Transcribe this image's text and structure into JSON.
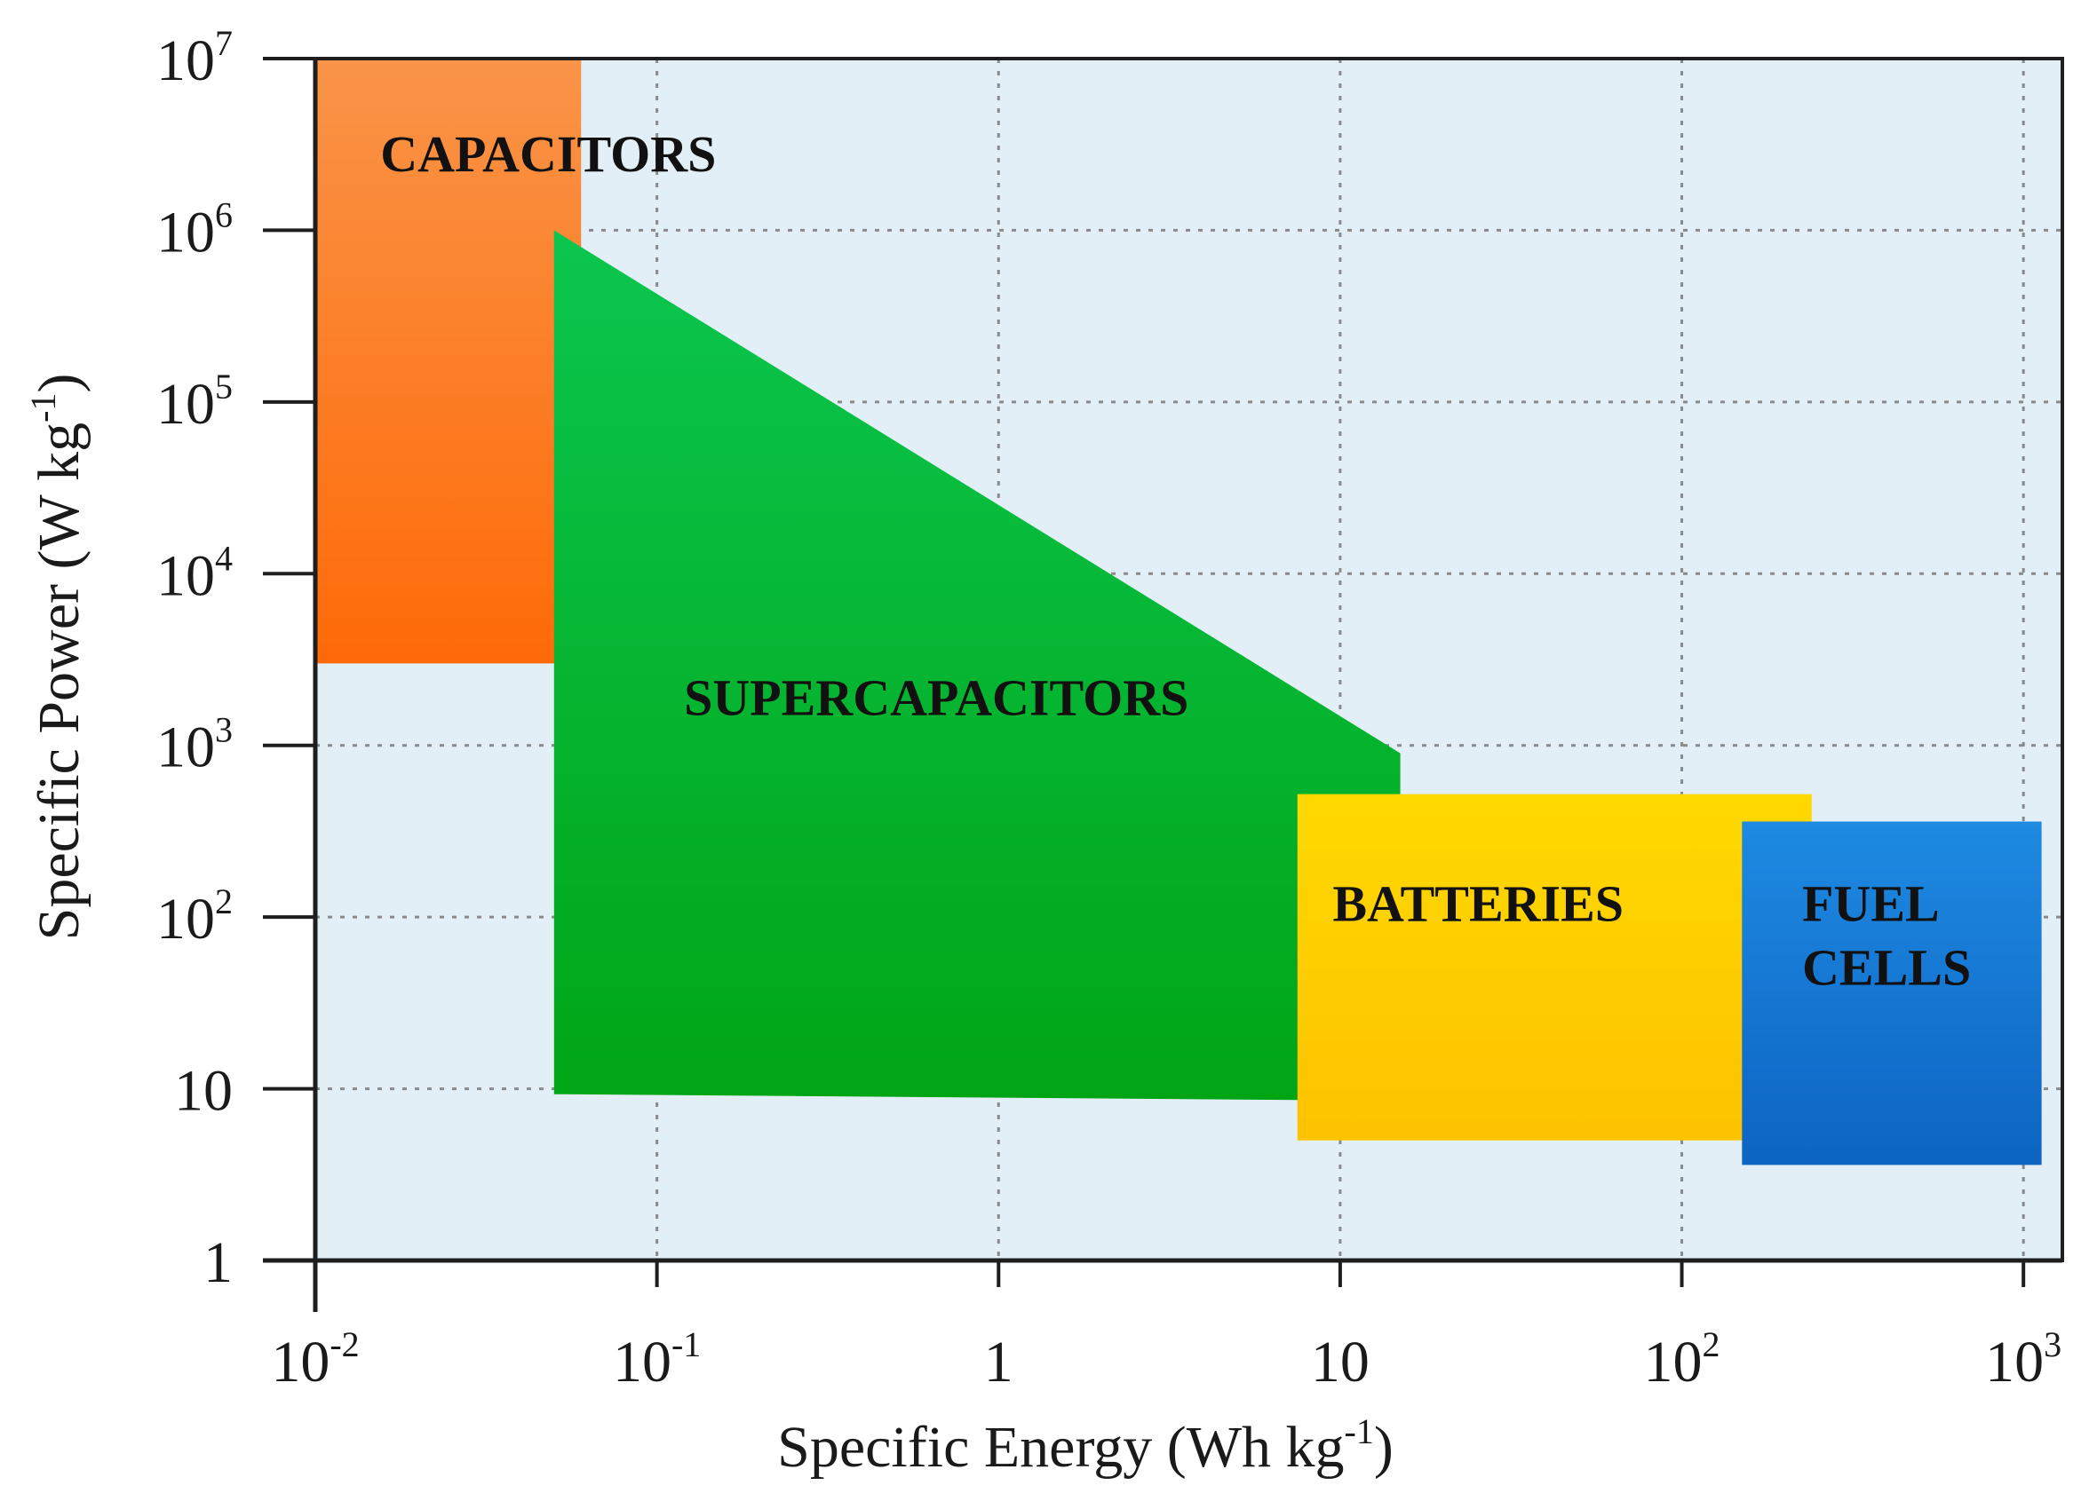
{
  "chart_data": {
    "type": "area",
    "title": "",
    "xlabel": "Specific Energy (Wh kg",
    "xlabel_sup": "-1",
    "xlabel_close": ")",
    "ylabel": "Specific Power (W kg",
    "ylabel_sup": "-1",
    "ylabel_close": ")",
    "xscale": "log",
    "yscale": "log",
    "xlim": [
      0.01,
      1300
    ],
    "ylim": [
      1,
      10000000
    ],
    "grid": true,
    "x_ticks": [
      {
        "value": 0.01,
        "base": "10",
        "exp": "-2"
      },
      {
        "value": 0.1,
        "base": "10",
        "exp": "-1"
      },
      {
        "value": 1,
        "base": "1",
        "exp": ""
      },
      {
        "value": 10,
        "base": "10",
        "exp": ""
      },
      {
        "value": 100,
        "base": "10",
        "exp": "2"
      },
      {
        "value": 1000,
        "base": "10",
        "exp": "3"
      }
    ],
    "y_ticks": [
      {
        "value": 1,
        "base": "1",
        "exp": ""
      },
      {
        "value": 10,
        "base": "10",
        "exp": ""
      },
      {
        "value": 100,
        "base": "10",
        "exp": "2"
      },
      {
        "value": 1000,
        "base": "10",
        "exp": "3"
      },
      {
        "value": 10000,
        "base": "10",
        "exp": "4"
      },
      {
        "value": 100000,
        "base": "10",
        "exp": "5"
      },
      {
        "value": 1000000,
        "base": "10",
        "exp": "6"
      },
      {
        "value": 10000000,
        "base": "10",
        "exp": "7"
      }
    ],
    "regions": [
      {
        "name": "CAPACITORS",
        "label_lines": [
          "CAPACITORS"
        ],
        "color_top": "#f99448",
        "color_bottom": "#ff6a08",
        "polygon": [
          [
            0.01,
            10000000
          ],
          [
            0.06,
            10000000
          ],
          [
            0.06,
            3000
          ],
          [
            0.01,
            3000
          ]
        ],
        "label_at": [
          0.0155,
          2200000
        ]
      },
      {
        "name": "SUPERCAPACITORS",
        "label_lines": [
          "SUPERCAPACITORS"
        ],
        "color_top": "#0bc64f",
        "color_bottom": "#00a515",
        "polygon": [
          [
            0.05,
            1000000
          ],
          [
            15,
            900
          ],
          [
            15,
            8.5
          ],
          [
            0.05,
            9.3
          ]
        ],
        "label_at": [
          0.12,
          1500
        ]
      },
      {
        "name": "BATTERIES",
        "label_lines": [
          "BATTERIES"
        ],
        "color_top": "#fed900",
        "color_bottom": "#fdc200",
        "polygon": [
          [
            7.5,
            520
          ],
          [
            240,
            520
          ],
          [
            240,
            5
          ],
          [
            7.5,
            5
          ]
        ],
        "label_at": [
          9.5,
          95
        ]
      },
      {
        "name": "FUEL CELLS",
        "label_lines": [
          "FUEL",
          "CELLS"
        ],
        "color_top": "#1e8ae2",
        "color_bottom": "#0d64c3",
        "polygon": [
          [
            150,
            360
          ],
          [
            1130,
            360
          ],
          [
            1130,
            3.6
          ],
          [
            150,
            3.6
          ]
        ],
        "label_at": [
          225,
          95
        ]
      }
    ]
  }
}
